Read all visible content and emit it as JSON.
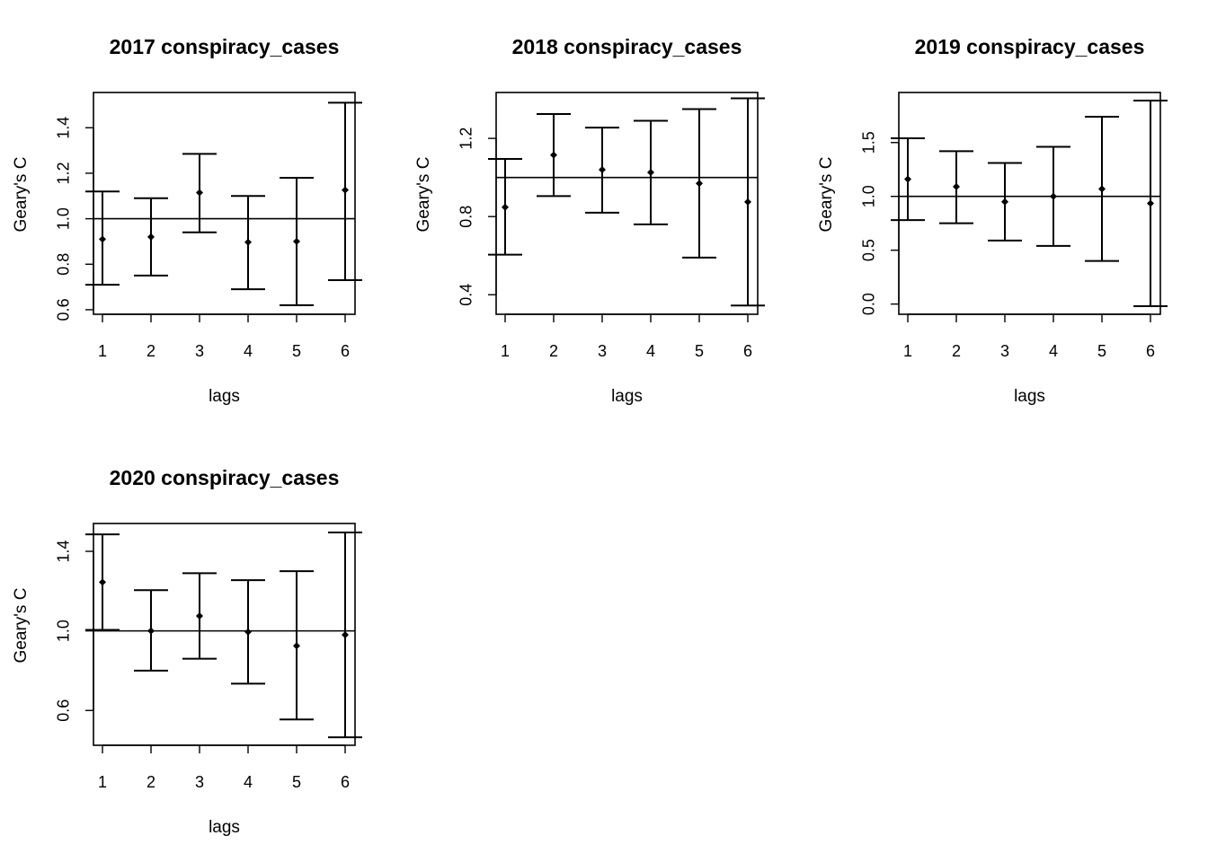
{
  "chart_data": [
    {
      "type": "errorbar",
      "title": "2017 conspiracy_cases",
      "xlabel": "lags",
      "ylabel": "Geary's  C",
      "x": [
        1,
        2,
        3,
        4,
        5,
        6
      ],
      "xticks": [
        "1",
        "2",
        "3",
        "4",
        "5",
        "6"
      ],
      "estimate": [
        0.91,
        0.92,
        1.115,
        0.897,
        0.9,
        1.126
      ],
      "lower": [
        0.71,
        0.75,
        0.94,
        0.69,
        0.62,
        0.73
      ],
      "upper": [
        1.12,
        1.09,
        1.285,
        1.1,
        1.18,
        1.51
      ],
      "yticks": [
        0.6,
        0.8,
        1.0,
        1.2,
        1.4
      ],
      "ytick_labels": [
        "0.6",
        "0.8",
        "1.0",
        "1.2",
        "1.4"
      ],
      "ylim": [
        0.58,
        1.555
      ],
      "reference_line": 1.0
    },
    {
      "type": "errorbar",
      "title": "2018 conspiracy_cases",
      "xlabel": "lags",
      "ylabel": "Geary's  C",
      "x": [
        1,
        2,
        3,
        4,
        5,
        6
      ],
      "xticks": [
        "1",
        "2",
        "3",
        "4",
        "5",
        "6"
      ],
      "estimate": [
        0.848,
        1.115,
        1.04,
        1.026,
        0.97,
        0.875
      ],
      "lower": [
        0.605,
        0.905,
        0.82,
        0.76,
        0.59,
        0.345
      ],
      "upper": [
        1.095,
        1.325,
        1.255,
        1.29,
        1.35,
        1.405
      ],
      "yticks": [
        0.4,
        0.8,
        1.2
      ],
      "ytick_labels": [
        "0.4",
        "0.8",
        "1.2"
      ],
      "ylim": [
        0.3,
        1.435
      ],
      "reference_line": 1.0
    },
    {
      "type": "errorbar",
      "title": "2019 conspiracy_cases",
      "xlabel": "lags",
      "ylabel": "Geary's  C",
      "x": [
        1,
        2,
        3,
        4,
        5,
        6
      ],
      "xticks": [
        "1",
        "2",
        "3",
        "4",
        "5",
        "6"
      ],
      "estimate": [
        1.16,
        1.09,
        0.95,
        1.0,
        1.07,
        0.935
      ],
      "lower": [
        0.78,
        0.75,
        0.59,
        0.54,
        0.4,
        -0.02
      ],
      "upper": [
        1.54,
        1.42,
        1.31,
        1.46,
        1.74,
        1.89
      ],
      "yticks": [
        0.0,
        0.5,
        1.0,
        1.5
      ],
      "ytick_labels": [
        "0.0",
        "0.5",
        "1.0",
        "1.5"
      ],
      "ylim": [
        -0.095,
        1.965
      ],
      "reference_line": 1.0
    },
    {
      "type": "errorbar",
      "title": "2020 conspiracy_cases",
      "xlabel": "lags",
      "ylabel": "Geary's  C",
      "x": [
        1,
        2,
        3,
        4,
        5,
        6
      ],
      "xticks": [
        "1",
        "2",
        "3",
        "4",
        "5",
        "6"
      ],
      "estimate": [
        1.245,
        1.0,
        1.075,
        0.995,
        0.925,
        0.98
      ],
      "lower": [
        1.005,
        0.8,
        0.86,
        0.735,
        0.555,
        0.465
      ],
      "upper": [
        1.485,
        1.205,
        1.29,
        1.255,
        1.3,
        1.495
      ],
      "yticks": [
        0.6,
        1.0,
        1.4
      ],
      "ytick_labels": [
        "0.6",
        "1.0",
        "1.4"
      ],
      "ylim": [
        0.425,
        1.54
      ],
      "reference_line": 1.0
    }
  ]
}
